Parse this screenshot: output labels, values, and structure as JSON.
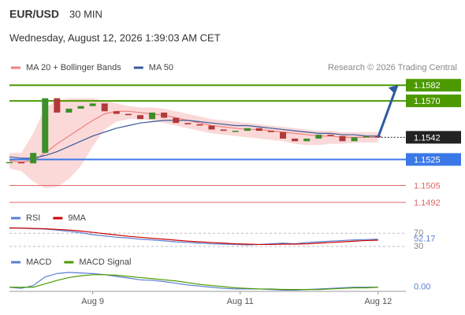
{
  "header": {
    "symbol": "EUR/USD",
    "interval": "30 MIN",
    "datetime": "Wednesday, August 12, 2026 1:39:03 AM CET"
  },
  "chart_data": [
    {
      "type": "candlestick",
      "attribution": "Research © 2026 Trading Central",
      "up_color": "#3d8f2a",
      "down_color": "#b23a3a",
      "xlim": [
        0,
        33.6
      ],
      "xticks": [
        {
          "value": 7,
          "label": "Aug 9"
        },
        {
          "value": 19.4,
          "label": "Aug 11"
        },
        {
          "value": 31,
          "label": "Aug 12"
        }
      ],
      "ylim": [
        1.1489,
        1.159
      ],
      "closes": [
        1.1523,
        1.1522,
        1.153,
        1.1572,
        1.1561,
        1.1564,
        1.1566,
        1.1568,
        1.1562,
        1.156,
        1.1559,
        1.1556,
        1.1561,
        1.1557,
        1.1553,
        1.1552,
        1.1551,
        1.1548,
        1.1547,
        1.1547,
        1.1549,
        1.1547,
        1.1546,
        1.1541,
        1.1539,
        1.1541,
        1.1544,
        1.1543,
        1.1539,
        1.1542,
        1.1543,
        1.1542
      ],
      "bollinger_upper": [
        1.153,
        1.153,
        1.1545,
        1.1565,
        1.157,
        1.1572,
        1.1572,
        1.1572,
        1.157,
        1.1568,
        1.1566,
        1.1565,
        1.1565,
        1.1564,
        1.1562,
        1.156,
        1.1558,
        1.1556,
        1.1555,
        1.1554,
        1.1553,
        1.1552,
        1.1551,
        1.155,
        1.1549,
        1.1548,
        1.1547,
        1.1547,
        1.1546,
        1.1546,
        1.1546,
        1.1546
      ],
      "bollinger_lower": [
        1.1518,
        1.1516,
        1.1508,
        1.1503,
        1.1504,
        1.151,
        1.152,
        1.1535,
        1.1548,
        1.1554,
        1.1556,
        1.1556,
        1.1555,
        1.1553,
        1.1551,
        1.1549,
        1.1547,
        1.1545,
        1.1544,
        1.1543,
        1.1542,
        1.1541,
        1.154,
        1.1539,
        1.1537,
        1.1536,
        1.1536,
        1.1537,
        1.1537,
        1.1538,
        1.1538,
        1.1538
      ],
      "band_color": "#fbd9d9",
      "series": [
        {
          "name": "MA 20 + Bollinger Bands",
          "color": "#f08080",
          "values": [
            1.1524,
            1.1523,
            1.1524,
            1.153,
            1.1537,
            1.1543,
            1.1549,
            1.1555,
            1.156,
            1.1562,
            1.1562,
            1.1561,
            1.156,
            1.1559,
            1.1557,
            1.1555,
            1.1553,
            1.1551,
            1.155,
            1.1549,
            1.1548,
            1.1548,
            1.1547,
            1.1546,
            1.1545,
            1.1544,
            1.1543,
            1.1543,
            1.1542,
            1.1542,
            1.1542,
            1.1542
          ]
        },
        {
          "name": "MA 50",
          "color": "#3a5a99",
          "values": [
            1.1527,
            1.1526,
            1.1526,
            1.1528,
            1.1531,
            1.1535,
            1.1539,
            1.1543,
            1.1546,
            1.1549,
            1.1551,
            1.1553,
            1.1554,
            1.1555,
            1.1555,
            1.1555,
            1.1554,
            1.1553,
            1.1552,
            1.1551,
            1.1551,
            1.155,
            1.1549,
            1.1548,
            1.1547,
            1.1546,
            1.1545,
            1.1545,
            1.1544,
            1.1544,
            1.1543,
            1.1543
          ]
        }
      ],
      "levels": [
        {
          "value": 1.1582,
          "label": "1.1582",
          "color": "#4c9a00",
          "style": "solid",
          "box": "filled"
        },
        {
          "value": 1.157,
          "label": "1.1570",
          "color": "#4c9a00",
          "style": "solid",
          "box": "filled"
        },
        {
          "value": 1.1542,
          "label": "1.1542",
          "color": "#222222",
          "style": "dotted",
          "box": "filled"
        },
        {
          "value": 1.1525,
          "label": "1.1525",
          "color": "#3b78e7",
          "style": "solid",
          "box": "filled"
        },
        {
          "value": 1.1505,
          "label": "1.1505",
          "color": "#e06666",
          "style": "thin",
          "box": "none"
        },
        {
          "value": 1.1492,
          "label": "1.1492",
          "color": "#e06666",
          "style": "thin",
          "box": "none"
        }
      ],
      "arrow": {
        "x": [
          31,
          32.6
        ],
        "y": [
          1.1542,
          1.1582
        ],
        "color": "#2c5aa0"
      }
    },
    {
      "type": "line",
      "ylim": [
        25,
        90
      ],
      "yticks": [
        30,
        70
      ],
      "grid": true,
      "series": [
        {
          "name": "RSI",
          "color": "#5b7fd4",
          "values": [
            87,
            86,
            84,
            83,
            80,
            76,
            72,
            66,
            62,
            58,
            56,
            52,
            50,
            47,
            44,
            42,
            40,
            38,
            37,
            36,
            35,
            36,
            38,
            40,
            38,
            42,
            44,
            46,
            48,
            50,
            51,
            52.17
          ]
        },
        {
          "name": "9MA",
          "color": "#cc0000",
          "values": [
            86,
            86,
            85,
            84,
            82,
            80,
            77,
            73,
            69,
            65,
            61,
            58,
            55,
            52,
            49,
            46,
            44,
            42,
            40,
            38,
            37,
            36,
            36,
            37,
            37,
            38,
            40,
            42,
            44,
            46,
            48,
            49
          ]
        }
      ]
    },
    {
      "type": "line",
      "ylim": [
        -0.001,
        0.003
      ],
      "yticks": [
        {
          "value": 0,
          "label": "0.00"
        }
      ],
      "series": [
        {
          "name": "MACD",
          "color": "#5b7fd4",
          "values": [
            0,
            -0.0002,
            0.0003,
            0.0018,
            0.0024,
            0.0026,
            0.0025,
            0.0024,
            0.0022,
            0.0019,
            0.0016,
            0.0013,
            0.0012,
            0.001,
            0.0007,
            0.0004,
            0.0002,
            0,
            -0.0002,
            -0.0003,
            -0.0003,
            -0.0003,
            -0.0004,
            -0.0005,
            -0.0005,
            -0.0004,
            -0.0003,
            -0.0002,
            -0.0001,
            0,
            0,
            0
          ]
        },
        {
          "name": "MACD Signal",
          "color": "#4c9a00",
          "values": [
            0,
            0,
            0,
            0.0006,
            0.0012,
            0.0017,
            0.002,
            0.0022,
            0.0022,
            0.0021,
            0.0019,
            0.0017,
            0.0015,
            0.0013,
            0.0011,
            0.0008,
            0.0005,
            0.0003,
            0.0001,
            -0.0001,
            -0.0002,
            -0.0003,
            -0.0003,
            -0.0004,
            -0.0004,
            -0.0004,
            -0.0004,
            -0.0003,
            -0.0002,
            -0.0001,
            -0.0001,
            0
          ]
        }
      ]
    }
  ]
}
